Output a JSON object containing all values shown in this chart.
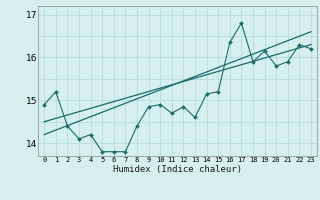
{
  "xlabel": "Humidex (Indice chaleur)",
  "ylabel": "",
  "bg_color": "#d6f0f0",
  "line_color": "#1a6b6b",
  "grid_color": "#b0d8d8",
  "xlim": [
    -0.5,
    23.5
  ],
  "ylim": [
    13.7,
    17.2
  ],
  "yticks": [
    14,
    15,
    16,
    17
  ],
  "xticks": [
    0,
    1,
    2,
    3,
    4,
    5,
    6,
    7,
    8,
    9,
    10,
    11,
    12,
    13,
    14,
    15,
    16,
    17,
    18,
    19,
    20,
    21,
    22,
    23
  ],
  "scatter_x": [
    0,
    1,
    2,
    3,
    4,
    5,
    6,
    7,
    8,
    9,
    10,
    11,
    12,
    13,
    14,
    15,
    16,
    17,
    18,
    19,
    20,
    21,
    22,
    23
  ],
  "scatter_y": [
    14.9,
    15.2,
    14.4,
    14.1,
    14.2,
    13.8,
    13.8,
    13.8,
    14.4,
    14.85,
    14.9,
    14.7,
    14.85,
    14.6,
    15.15,
    15.2,
    16.35,
    16.8,
    15.9,
    16.15,
    15.8,
    15.9,
    16.3,
    16.2
  ],
  "trend1_x": [
    0,
    23
  ],
  "trend1_y": [
    14.5,
    16.3
  ],
  "trend2_x": [
    0,
    23
  ],
  "trend2_y": [
    14.2,
    16.6
  ]
}
